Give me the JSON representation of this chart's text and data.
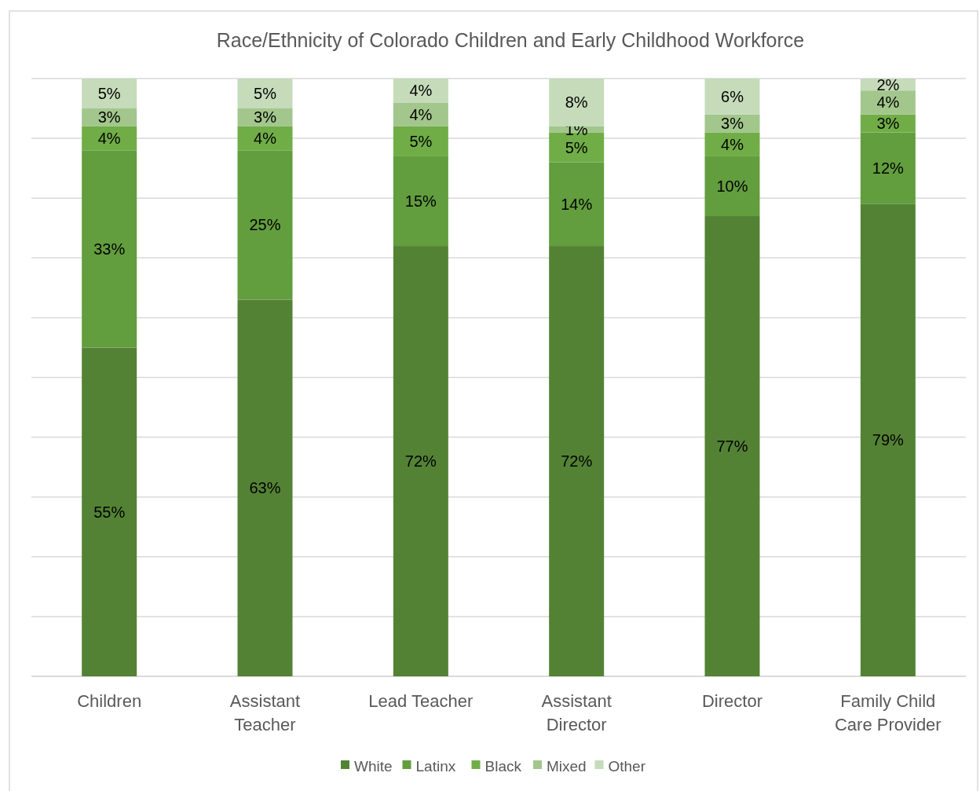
{
  "chart_data": {
    "type": "bar",
    "title": "Race/Ethnicity of Colorado Children and Early Childhood Workforce",
    "categories": [
      "Children",
      "Assistant Teacher",
      "Lead Teacher",
      "Assistant Director",
      "Director",
      "Family Child Care Provider"
    ],
    "stacked": true,
    "grid": "y",
    "legend": "bottom",
    "tick_labels": "x",
    "series": [
      {
        "name": "White",
        "color": "#548235",
        "values": [
          55,
          63,
          72,
          72,
          77,
          79
        ],
        "value_labels": [
          "55%",
          "63%",
          "72%",
          "72%",
          "77%",
          "79%"
        ]
      },
      {
        "name": "Latinx",
        "color": "#629d3e",
        "values": [
          33,
          25,
          15,
          14,
          10,
          12
        ],
        "value_labels": [
          "33%",
          "25%",
          "15%",
          "14%",
          "10%",
          "12%"
        ]
      },
      {
        "name": "Black",
        "color": "#70ad47",
        "values": [
          4,
          4,
          5,
          5,
          4,
          3
        ],
        "value_labels": [
          "4%",
          "4%",
          "5%",
          "5%",
          "4%",
          "3%"
        ]
      },
      {
        "name": "Mixed",
        "color": "#a2c68c",
        "values": [
          3,
          3,
          4,
          1,
          3,
          4
        ],
        "value_labels": [
          "3%",
          "3%",
          "4%",
          "1%",
          "3%",
          "4%"
        ]
      },
      {
        "name": "Other",
        "color": "#c5dbba",
        "values": [
          5,
          5,
          4,
          8,
          6,
          2
        ],
        "value_labels": [
          "5%",
          "5%",
          "4%",
          "8%",
          "6%",
          "2%"
        ]
      }
    ]
  }
}
